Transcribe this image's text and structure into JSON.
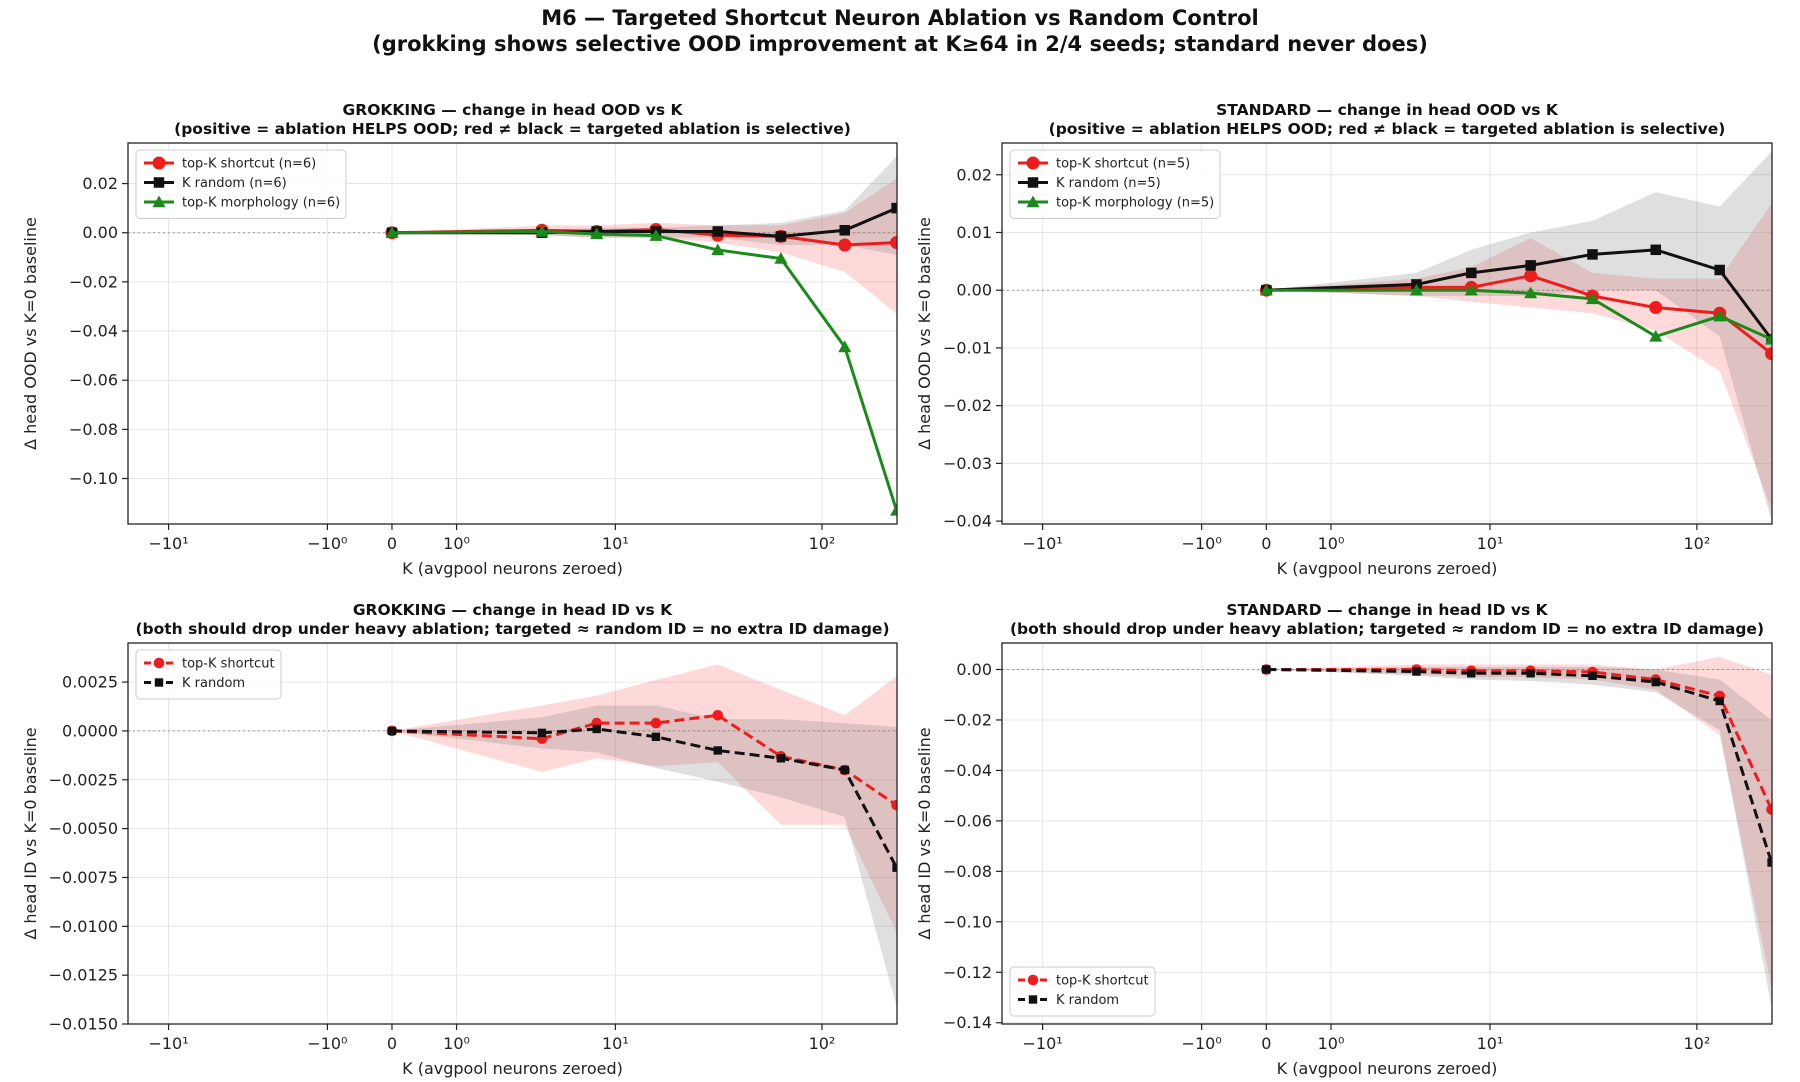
{
  "figure": {
    "title_line1": "M6 — Targeted Shortcut Neuron Ablation vs Random Control",
    "title_line2": "(grokking shows selective OOD improvement at K≥64 in 2/4 seeds; standard never does)"
  },
  "colors": {
    "shortcut": "#ee1c1c",
    "random": "#111111",
    "morphology": "#1a8a1a"
  },
  "chart_data": [
    {
      "id": "grok-ood",
      "type": "line",
      "title_line1": "GROKKING — change in head OOD vs K",
      "title_line2": "(positive = ablation HELPS OOD; red ≠ black = targeted ablation is selective)",
      "xlabel": "K (avgpool neurons zeroed)",
      "ylabel": "Δ head OOD vs K=0 baseline",
      "xscale": "symlog",
      "xlim": [
        -16,
        225
      ],
      "ylim": [
        -0.1185,
        0.0365
      ],
      "xticks": [
        {
          "v": -10,
          "label": "−10¹"
        },
        {
          "v": -1,
          "label": "−10⁰"
        },
        {
          "v": 0,
          "label": "0"
        },
        {
          "v": 1,
          "label": "10⁰"
        },
        {
          "v": 10,
          "label": "10¹"
        },
        {
          "v": 100,
          "label": "10²"
        }
      ],
      "yticks": [
        {
          "v": 0.02,
          "label": "0.02"
        },
        {
          "v": 0.0,
          "label": "0.00"
        },
        {
          "v": -0.02,
          "label": "−0.02"
        },
        {
          "v": -0.04,
          "label": "−0.04"
        },
        {
          "v": -0.06,
          "label": "−0.06"
        },
        {
          "v": -0.08,
          "label": "−0.08"
        },
        {
          "v": -0.1,
          "label": "−0.10"
        }
      ],
      "legend_pos": "upper-left",
      "x": [
        0,
        4,
        8,
        16,
        32,
        64,
        128,
        224
      ],
      "series": [
        {
          "key": "shortcut",
          "name": "top-K shortcut (n=6)",
          "marker": "circle",
          "dash": false,
          "values": [
            0.0,
            0.001,
            0.0005,
            0.0013,
            -0.001,
            -0.0015,
            -0.005,
            -0.004
          ],
          "band_low": [
            0.0,
            -0.001,
            -0.002,
            -0.002,
            -0.004,
            -0.008,
            -0.016,
            -0.033
          ],
          "band_high": [
            0.0,
            0.003,
            0.003,
            0.004,
            0.003,
            0.003,
            0.008,
            0.022
          ]
        },
        {
          "key": "random",
          "name": "K random (n=6)",
          "marker": "square",
          "dash": false,
          "values": [
            0.0,
            0.0,
            0.0005,
            0.0005,
            0.0005,
            -0.0015,
            0.001,
            0.01
          ],
          "band_low": [
            0.0,
            -0.001,
            -0.002,
            -0.002,
            -0.002,
            -0.005,
            -0.005,
            -0.009
          ],
          "band_high": [
            0.0,
            0.001,
            0.002,
            0.002,
            0.003,
            0.004,
            0.009,
            0.031
          ]
        },
        {
          "key": "morphology",
          "name": "top-K morphology (n=6)",
          "marker": "triangle",
          "dash": false,
          "values": [
            0.0,
            0.0005,
            -0.0005,
            -0.0012,
            -0.007,
            -0.0105,
            -0.0465,
            -0.113
          ]
        }
      ]
    },
    {
      "id": "std-ood",
      "type": "line",
      "title_line1": "STANDARD — change in head OOD vs K",
      "title_line2": "(positive = ablation HELPS OOD; red ≠ black = targeted ablation is selective)",
      "xlabel": "K (avgpool neurons zeroed)",
      "ylabel": "Δ head OOD vs K=0 baseline",
      "xscale": "symlog",
      "xlim": [
        -16,
        225
      ],
      "ylim": [
        -0.0405,
        0.0255
      ],
      "xticks": [
        {
          "v": -10,
          "label": "−10¹"
        },
        {
          "v": -1,
          "label": "−10⁰"
        },
        {
          "v": 0,
          "label": "0"
        },
        {
          "v": 1,
          "label": "10⁰"
        },
        {
          "v": 10,
          "label": "10¹"
        },
        {
          "v": 100,
          "label": "10²"
        }
      ],
      "yticks": [
        {
          "v": 0.02,
          "label": "0.02"
        },
        {
          "v": 0.01,
          "label": "0.01"
        },
        {
          "v": 0.0,
          "label": "0.00"
        },
        {
          "v": -0.01,
          "label": "−0.01"
        },
        {
          "v": -0.02,
          "label": "−0.02"
        },
        {
          "v": -0.03,
          "label": "−0.03"
        },
        {
          "v": -0.04,
          "label": "−0.04"
        }
      ],
      "legend_pos": "upper-left",
      "x": [
        0,
        4,
        8,
        16,
        32,
        64,
        128,
        224
      ],
      "series": [
        {
          "key": "shortcut",
          "name": "top-K shortcut (n=5)",
          "marker": "circle",
          "dash": false,
          "values": [
            0.0,
            0.0005,
            0.0005,
            0.0025,
            -0.001,
            -0.003,
            -0.004,
            -0.011
          ],
          "band_low": [
            0.0,
            -0.001,
            -0.002,
            -0.003,
            -0.004,
            -0.007,
            -0.014,
            -0.038
          ],
          "band_high": [
            0.0,
            0.002,
            0.004,
            0.009,
            0.003,
            0.002,
            0.002,
            0.015
          ]
        },
        {
          "key": "random",
          "name": "K random (n=5)",
          "marker": "square",
          "dash": false,
          "values": [
            0.0,
            0.001,
            0.003,
            0.0043,
            0.0062,
            0.007,
            0.0035,
            -0.0085
          ],
          "band_low": [
            0.0,
            -0.001,
            -0.001,
            -0.001,
            0.0,
            0.0,
            -0.008,
            -0.04
          ],
          "band_high": [
            0.0,
            0.003,
            0.007,
            0.01,
            0.012,
            0.017,
            0.0145,
            0.024
          ]
        },
        {
          "key": "morphology",
          "name": "top-K morphology (n=5)",
          "marker": "triangle",
          "dash": false,
          "values": [
            0.0,
            0.0,
            0.0,
            -0.0005,
            -0.0015,
            -0.008,
            -0.0045,
            -0.0085
          ]
        }
      ]
    },
    {
      "id": "grok-id",
      "type": "line",
      "title_line1": "GROKKING — change in head ID vs K",
      "title_line2": "(both should drop under heavy ablation; targeted ≈ random ID = no extra ID damage)",
      "xlabel": "K (avgpool neurons zeroed)",
      "ylabel": "Δ head ID vs K=0 baseline",
      "xscale": "symlog",
      "xlim": [
        -16,
        225
      ],
      "ylim": [
        -0.015,
        0.0045
      ],
      "xticks": [
        {
          "v": -10,
          "label": "−10¹"
        },
        {
          "v": -1,
          "label": "−10⁰"
        },
        {
          "v": 0,
          "label": "0"
        },
        {
          "v": 1,
          "label": "10⁰"
        },
        {
          "v": 10,
          "label": "10¹"
        },
        {
          "v": 100,
          "label": "10²"
        }
      ],
      "yticks": [
        {
          "v": 0.0025,
          "label": "0.0025"
        },
        {
          "v": 0.0,
          "label": "0.0000"
        },
        {
          "v": -0.0025,
          "label": "−0.0025"
        },
        {
          "v": -0.005,
          "label": "−0.0050"
        },
        {
          "v": -0.0075,
          "label": "−0.0075"
        },
        {
          "v": -0.01,
          "label": "−0.0100"
        },
        {
          "v": -0.0125,
          "label": "−0.0125"
        },
        {
          "v": -0.015,
          "label": "−0.0150"
        }
      ],
      "legend_pos": "upper-left",
      "x": [
        0,
        4,
        8,
        16,
        32,
        64,
        128,
        224
      ],
      "series": [
        {
          "key": "shortcut",
          "name": "top-K shortcut",
          "marker": "circle",
          "dash": true,
          "values": [
            0.0,
            -0.0004,
            0.0004,
            0.0004,
            0.0008,
            -0.0013,
            -0.002,
            -0.0038
          ],
          "band_low": [
            0.0,
            -0.0021,
            -0.0014,
            -0.0018,
            -0.0016,
            -0.0048,
            -0.0048,
            -0.0103
          ],
          "band_high": [
            0.0,
            0.0013,
            0.0018,
            0.0026,
            0.0034,
            0.0021,
            0.0008,
            0.0028
          ]
        },
        {
          "key": "random",
          "name": "K random",
          "marker": "square",
          "dash": true,
          "values": [
            0.0,
            -0.0001,
            0.0001,
            -0.0003,
            -0.001,
            -0.0014,
            -0.002,
            -0.007
          ],
          "band_low": [
            0.0,
            -0.0009,
            -0.0011,
            -0.0019,
            -0.0026,
            -0.0034,
            -0.0044,
            -0.0141
          ],
          "band_high": [
            0.0,
            0.0007,
            0.0013,
            0.0013,
            0.0006,
            0.0006,
            0.0004,
            0.0002
          ]
        }
      ]
    },
    {
      "id": "std-id",
      "type": "line",
      "title_line1": "STANDARD — change in head ID vs K",
      "title_line2": "(both should drop under heavy ablation; targeted ≈ random ID = no extra ID damage)",
      "xlabel": "K (avgpool neurons zeroed)",
      "ylabel": "Δ head ID vs K=0 baseline",
      "xscale": "symlog",
      "xlim": [
        -16,
        225
      ],
      "ylim": [
        -0.1405,
        0.0105
      ],
      "xticks": [
        {
          "v": -10,
          "label": "−10¹"
        },
        {
          "v": -1,
          "label": "−10⁰"
        },
        {
          "v": 0,
          "label": "0"
        },
        {
          "v": 1,
          "label": "10⁰"
        },
        {
          "v": 10,
          "label": "10¹"
        },
        {
          "v": 100,
          "label": "10²"
        }
      ],
      "yticks": [
        {
          "v": 0.0,
          "label": "0.00"
        },
        {
          "v": -0.02,
          "label": "−0.02"
        },
        {
          "v": -0.04,
          "label": "−0.04"
        },
        {
          "v": -0.06,
          "label": "−0.06"
        },
        {
          "v": -0.08,
          "label": "−0.08"
        },
        {
          "v": -0.1,
          "label": "−0.10"
        },
        {
          "v": -0.12,
          "label": "−0.12"
        },
        {
          "v": -0.14,
          "label": "−0.14"
        }
      ],
      "legend_pos": "lower-left",
      "x": [
        0,
        4,
        8,
        16,
        32,
        64,
        128,
        224
      ],
      "series": [
        {
          "key": "shortcut",
          "name": "top-K shortcut",
          "marker": "circle",
          "dash": true,
          "values": [
            0.0,
            0.0,
            -0.0005,
            -0.0005,
            -0.001,
            -0.004,
            -0.0105,
            -0.0555
          ],
          "band_low": [
            0.0,
            -0.002,
            -0.003,
            -0.003,
            -0.004,
            -0.008,
            -0.026,
            -0.126
          ],
          "band_high": [
            0.0,
            0.002,
            0.002,
            0.002,
            0.002,
            0.0,
            0.005,
            -0.002
          ]
        },
        {
          "key": "random",
          "name": "K random",
          "marker": "square",
          "dash": true,
          "values": [
            0.0,
            -0.0008,
            -0.0015,
            -0.0015,
            -0.0025,
            -0.005,
            -0.0125,
            -0.0765
          ],
          "band_low": [
            0.0,
            -0.0025,
            -0.004,
            -0.0045,
            -0.006,
            -0.009,
            -0.024,
            -0.134
          ],
          "band_high": [
            0.0,
            0.001,
            0.001,
            0.001,
            0.001,
            0.0,
            -0.004,
            -0.02
          ]
        }
      ]
    }
  ]
}
